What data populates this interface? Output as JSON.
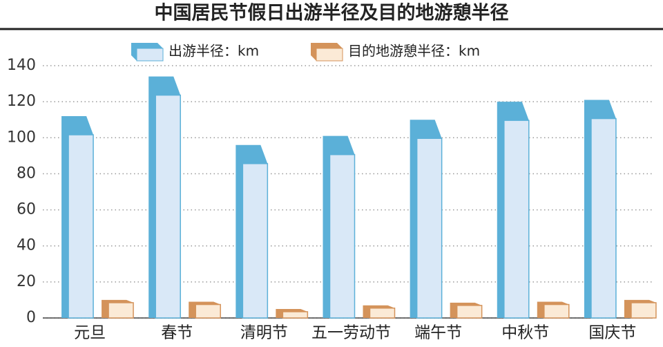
{
  "chart_data": {
    "type": "bar",
    "title": "中国居民节假日出游半径及目的地游憩半径",
    "categories": [
      "元旦",
      "春节",
      "清明节",
      "五一劳动节",
      "端午节",
      "中秋节",
      "国庆节"
    ],
    "series": [
      {
        "name": "出游半径：km",
        "color": "#5bb0d8",
        "values": [
          112,
          134,
          96,
          101,
          110,
          120,
          121
        ]
      },
      {
        "name": "目的地游憩半径：km",
        "color": "#d4935a",
        "values": [
          10,
          9,
          5,
          7,
          8.5,
          9,
          10
        ]
      }
    ],
    "ylim": [
      0,
      140
    ],
    "yticks": [
      0,
      20,
      40,
      60,
      80,
      100,
      120,
      140
    ],
    "grid": true
  }
}
